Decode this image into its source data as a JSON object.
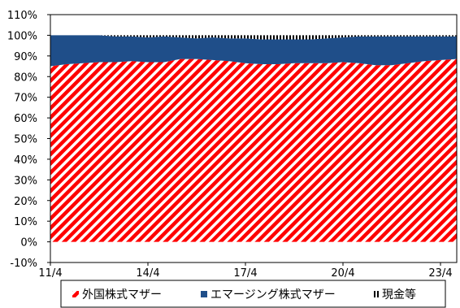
{
  "chart_data": {
    "type": "area",
    "stacked": true,
    "x": [
      "11/4",
      "11/10",
      "12/4",
      "12/10",
      "13/4",
      "13/10",
      "14/4",
      "14/10",
      "15/4",
      "15/10",
      "16/4",
      "16/10",
      "17/4",
      "17/10",
      "18/4",
      "18/10",
      "19/4",
      "19/10",
      "20/4",
      "20/10",
      "21/4",
      "21/10",
      "22/4",
      "22/10",
      "23/4",
      "23/10"
    ],
    "series": [
      {
        "name": "外国株式マザー",
        "color": "#FF0000",
        "fill": "red-diagonal-hatch",
        "values": [
          85,
          86,
          86.5,
          87,
          87,
          87.5,
          87,
          87,
          88.5,
          88.5,
          88,
          87.5,
          86.5,
          86,
          86,
          86.5,
          86.5,
          86.5,
          87,
          86.5,
          85.5,
          85.5,
          86.5,
          87.5,
          88,
          88.5
        ]
      },
      {
        "name": "エマージング株式マザー",
        "color": "#1F4E89",
        "fill": "solid",
        "values": [
          15,
          14,
          13.5,
          13,
          12.5,
          12,
          12,
          12.5,
          10.5,
          10,
          11,
          11,
          12,
          12,
          12,
          11.5,
          11.5,
          12,
          12,
          13,
          14,
          14,
          13,
          12,
          11.5,
          11
        ]
      },
      {
        "name": "現金等",
        "color": "#000000",
        "fill": "black-vertical-stripes",
        "values": [
          0,
          0,
          0,
          0,
          0.5,
          0.5,
          1,
          0.5,
          1,
          1.5,
          1,
          1.5,
          1.5,
          2,
          2,
          2,
          2,
          1.5,
          1,
          0.5,
          0.5,
          0.5,
          0.5,
          0.5,
          0.5,
          0.5
        ]
      }
    ],
    "xticks": [
      "11/4",
      "14/4",
      "17/4",
      "20/4",
      "23/4"
    ],
    "yticks": [
      "-10%",
      "0%",
      "10%",
      "20%",
      "30%",
      "40%",
      "50%",
      "60%",
      "70%",
      "80%",
      "90%",
      "100%",
      "110%"
    ],
    "ylim": [
      -10,
      110
    ],
    "grid": false,
    "legend_position": "bottom"
  }
}
